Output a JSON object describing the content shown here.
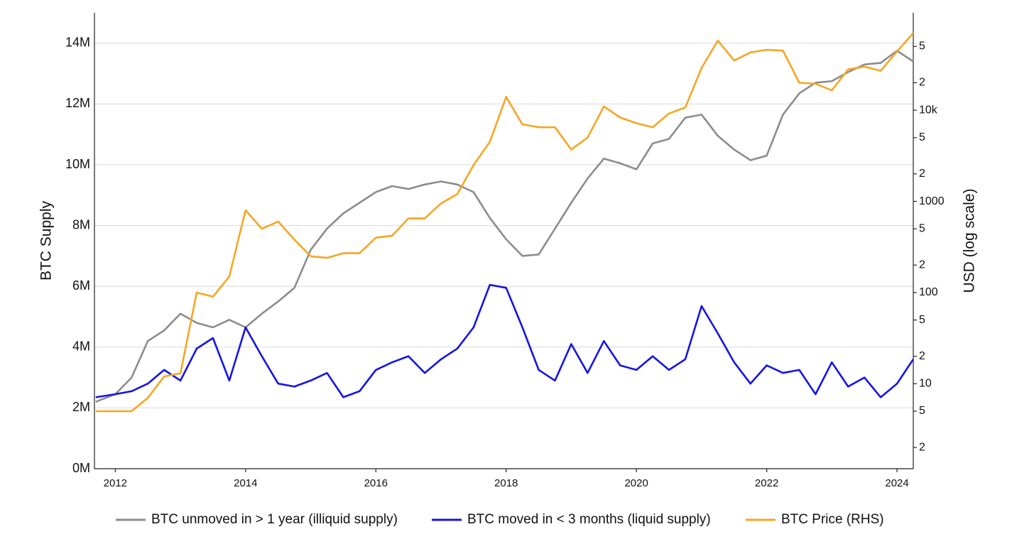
{
  "chart_data": {
    "type": "line",
    "y_label": "BTC Supply",
    "y2_label": "USD (log scale)",
    "y2_log": true,
    "grid": true,
    "legend": "bottom",
    "xlim": [
      2011.68,
      2024.25
    ],
    "xticks": [
      2012,
      2014,
      2016,
      2018,
      2020,
      2022,
      2024
    ],
    "ylim": [
      0,
      15
    ],
    "yticks": [
      {
        "value": 0,
        "label": "0M"
      },
      {
        "value": 2,
        "label": "2M"
      },
      {
        "value": 4,
        "label": "4M"
      },
      {
        "value": 6,
        "label": "6M"
      },
      {
        "value": 8,
        "label": "8M"
      },
      {
        "value": 10,
        "label": "10M"
      },
      {
        "value": 12,
        "label": "12M"
      },
      {
        "value": 14,
        "label": "14M"
      }
    ],
    "y2lim": [
      1.17,
      117000
    ],
    "y2ticks": [
      2,
      5,
      10,
      {
        "value": 20,
        "label": "2"
      },
      {
        "value": 50,
        "label": "5"
      },
      100,
      {
        "value": 200,
        "label": "2"
      },
      {
        "value": 500,
        "label": "5"
      },
      1000,
      {
        "value": 2000,
        "label": "2"
      },
      {
        "value": 5000,
        "label": "5"
      },
      {
        "value": 10000,
        "label": "10k"
      },
      {
        "value": 20000,
        "label": "2"
      },
      {
        "value": 50000,
        "label": "5"
      }
    ],
    "x": [
      2011.7,
      2012.0,
      2012.25,
      2012.5,
      2012.75,
      2013.0,
      2013.25,
      2013.5,
      2013.75,
      2014.0,
      2014.25,
      2014.5,
      2014.75,
      2015.0,
      2015.25,
      2015.5,
      2015.75,
      2016.0,
      2016.25,
      2016.5,
      2016.75,
      2017.0,
      2017.25,
      2017.5,
      2017.75,
      2018.0,
      2018.25,
      2018.5,
      2018.75,
      2019.0,
      2019.25,
      2019.5,
      2019.75,
      2020.0,
      2020.25,
      2020.5,
      2020.75,
      2021.0,
      2021.25,
      2021.5,
      2021.75,
      2022.0,
      2022.25,
      2022.5,
      2022.75,
      2023.0,
      2023.25,
      2023.5,
      2023.75,
      2024.0,
      2024.25
    ],
    "series": [
      {
        "name": "BTC unmoved in > 1 year (illiquid supply)",
        "color": "#8c8c8c",
        "values": [
          2.2,
          2.45,
          3.0,
          4.2,
          4.55,
          5.1,
          4.8,
          4.65,
          4.9,
          4.65,
          5.1,
          5.5,
          5.95,
          7.2,
          7.9,
          8.4,
          8.75,
          9.1,
          9.3,
          9.2,
          9.35,
          9.45,
          9.35,
          9.1,
          8.25,
          7.55,
          7.0,
          7.05,
          7.9,
          8.75,
          9.55,
          10.2,
          10.05,
          9.85,
          10.7,
          10.85,
          11.55,
          11.65,
          10.95,
          10.5,
          10.15,
          10.3,
          11.65,
          12.35,
          12.7,
          12.75,
          13.05,
          13.3,
          13.35,
          13.75,
          13.4
        ]
      },
      {
        "name": "BTC moved in < 3 months (liquid supply)",
        "color": "#1414e6",
        "values": [
          2.35,
          2.45,
          2.55,
          2.8,
          3.25,
          2.9,
          3.95,
          4.3,
          2.9,
          4.65,
          3.7,
          2.8,
          2.7,
          2.9,
          3.15,
          2.35,
          2.55,
          3.25,
          3.5,
          3.7,
          3.15,
          3.6,
          3.95,
          4.65,
          6.05,
          5.95,
          4.65,
          3.25,
          2.9,
          4.1,
          3.15,
          4.2,
          3.4,
          3.25,
          3.7,
          3.25,
          3.6,
          5.35,
          4.45,
          3.5,
          2.8,
          3.4,
          3.15,
          3.25,
          2.45,
          3.5,
          2.7,
          3.0,
          2.35,
          2.8,
          3.6
        ]
      },
      {
        "name": "BTC Price (RHS)",
        "color": "#f5a623",
        "axis": "y2",
        "values": [
          5,
          5,
          5,
          7,
          12,
          13,
          100,
          90,
          150,
          800,
          500,
          600,
          380,
          250,
          240,
          270,
          270,
          400,
          420,
          650,
          650,
          950,
          1200,
          2500,
          4500,
          14000,
          7000,
          6500,
          6500,
          3700,
          5000,
          11000,
          8300,
          7200,
          6500,
          9200,
          10700,
          29000,
          58000,
          35000,
          43000,
          46000,
          45000,
          20000,
          19500,
          16500,
          28000,
          30000,
          27000,
          44000,
          70000
        ]
      }
    ]
  }
}
